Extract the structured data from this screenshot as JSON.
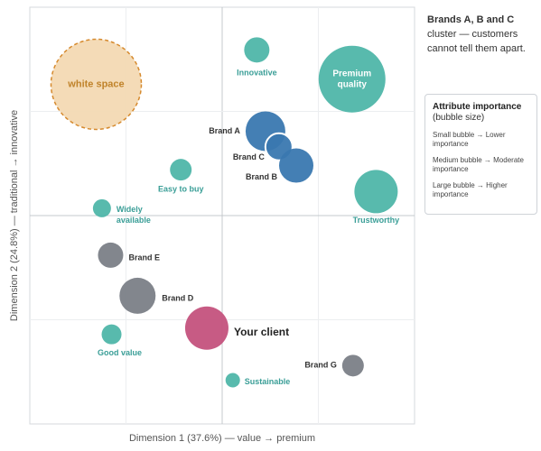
{
  "chart_data": {
    "type": "bubble",
    "xlabel": "Dimension 1 (37.6%) — value  →  premium",
    "ylabel": "Dimension 2 (24.8%) — traditional  →  innovative",
    "xlim": [
      -2,
      2
    ],
    "ylim": [
      -2,
      2
    ],
    "xticks": [
      -1,
      0,
      1
    ],
    "yticks": [
      -1,
      0,
      1
    ],
    "grid": true,
    "points": [
      {
        "name": "white space",
        "x": -1.31,
        "y": 1.26,
        "size": 50,
        "color": "#f3d9b3"
      },
      {
        "name": "Innovative",
        "x": 0.36,
        "y": 1.59,
        "size": 14,
        "color": "#4fb6a9"
      },
      {
        "name": "Premium quality",
        "x": 1.35,
        "y": 1.31,
        "size": 37,
        "color": "#4fb6a9"
      },
      {
        "name": "Brand A",
        "x": 0.45,
        "y": 0.81,
        "size": 22,
        "color": "#3a78b0"
      },
      {
        "name": "Brand C",
        "x": 0.59,
        "y": 0.66,
        "size": 15,
        "color": "#3a78b0"
      },
      {
        "name": "Brand B",
        "x": 0.77,
        "y": 0.48,
        "size": 19,
        "color": "#3a78b0"
      },
      {
        "name": "Easy to buy",
        "x": -0.43,
        "y": 0.44,
        "size": 12,
        "color": "#4fb6a9"
      },
      {
        "name": "Trustworthy",
        "x": 1.6,
        "y": 0.23,
        "size": 24,
        "color": "#4fb6a9"
      },
      {
        "name": "Widely available",
        "x": -1.25,
        "y": 0.07,
        "size": 10,
        "color": "#4fb6a9"
      },
      {
        "name": "Brand E",
        "x": -1.16,
        "y": -0.38,
        "size": 14,
        "color": "#7b8087"
      },
      {
        "name": "Brand D",
        "x": -0.88,
        "y": -0.77,
        "size": 20,
        "color": "#7b8087"
      },
      {
        "name": "Your client",
        "x": -0.16,
        "y": -1.08,
        "size": 24,
        "color": "#c4527d"
      },
      {
        "name": "Good value",
        "x": -1.15,
        "y": -1.14,
        "size": 11,
        "color": "#4fb6a9"
      },
      {
        "name": "Brand G",
        "x": 1.36,
        "y": -1.44,
        "size": 12,
        "color": "#7b8087"
      },
      {
        "name": "Sustainable",
        "x": 0.11,
        "y": -1.58,
        "size": 8,
        "color": "#4fb6a9"
      }
    ]
  },
  "note": {
    "title": "Brands A, B and C",
    "text": "cluster — customers cannot tell them apart."
  },
  "legend": {
    "title": "Attribute importance",
    "subtitle": "(bubble size)",
    "items": [
      "Small bubble → Lower importance",
      "Medium bubble → Moderate importance",
      "Large bubble → Higher importance"
    ]
  }
}
